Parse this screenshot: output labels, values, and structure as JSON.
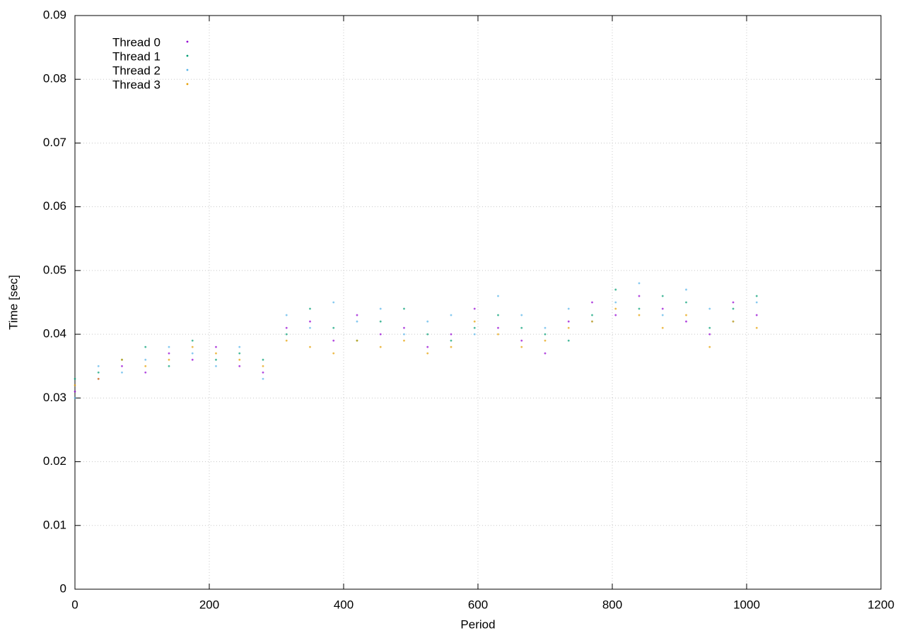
{
  "chart_data": {
    "type": "scatter",
    "xlabel": "Period",
    "ylabel": "Time [sec]",
    "x": [
      0,
      35,
      70,
      105,
      140,
      175,
      210,
      245,
      280,
      315,
      350,
      385,
      420,
      455,
      490,
      525,
      560,
      595,
      630,
      665,
      700,
      735,
      770,
      805,
      840,
      875,
      910,
      945,
      980,
      1015
    ],
    "series": [
      {
        "name": "Thread 0",
        "color": "#9400d3",
        "values": [
          0.031,
          0.033,
          0.035,
          0.034,
          0.037,
          0.036,
          0.038,
          0.035,
          0.034,
          0.041,
          0.042,
          0.039,
          0.043,
          0.04,
          0.041,
          0.038,
          0.04,
          0.044,
          0.041,
          0.039,
          0.037,
          0.042,
          0.045,
          0.043,
          0.046,
          0.044,
          0.042,
          0.04,
          0.045,
          0.043
        ]
      },
      {
        "name": "Thread 1",
        "color": "#009e73",
        "values": [
          0.033,
          0.034,
          0.036,
          0.038,
          0.035,
          0.039,
          0.036,
          0.037,
          0.036,
          0.04,
          0.044,
          0.041,
          0.039,
          0.042,
          0.044,
          0.04,
          0.039,
          0.041,
          0.043,
          0.041,
          0.04,
          0.039,
          0.043,
          0.047,
          0.044,
          0.046,
          0.045,
          0.041,
          0.044,
          0.046
        ]
      },
      {
        "name": "Thread 2",
        "color": "#56b4e9",
        "values": [
          0.03,
          0.035,
          0.034,
          0.036,
          0.038,
          0.037,
          0.035,
          0.038,
          0.033,
          0.043,
          0.041,
          0.045,
          0.042,
          0.044,
          0.04,
          0.042,
          0.043,
          0.04,
          0.046,
          0.043,
          0.041,
          0.044,
          0.042,
          0.045,
          0.048,
          0.043,
          0.047,
          0.044,
          0.042,
          0.045
        ]
      },
      {
        "name": "Thread 3",
        "color": "#e69f00",
        "values": [
          0.032,
          0.033,
          0.036,
          0.035,
          0.036,
          0.038,
          0.037,
          0.036,
          0.035,
          0.039,
          0.038,
          0.037,
          0.039,
          0.038,
          0.039,
          0.037,
          0.038,
          0.042,
          0.04,
          0.038,
          0.039,
          0.041,
          0.042,
          0.044,
          0.043,
          0.041,
          0.043,
          0.038,
          0.042,
          0.041
        ]
      }
    ],
    "xlim": [
      0,
      1200
    ],
    "xticks": [
      0,
      200,
      400,
      600,
      800,
      1000,
      1200
    ],
    "ylim": [
      0,
      0.09
    ],
    "yticks": [
      0,
      0.01,
      0.02,
      0.03,
      0.04,
      0.05,
      0.06,
      0.07,
      0.08,
      0.09
    ],
    "grid": true,
    "legend": "upper left"
  }
}
